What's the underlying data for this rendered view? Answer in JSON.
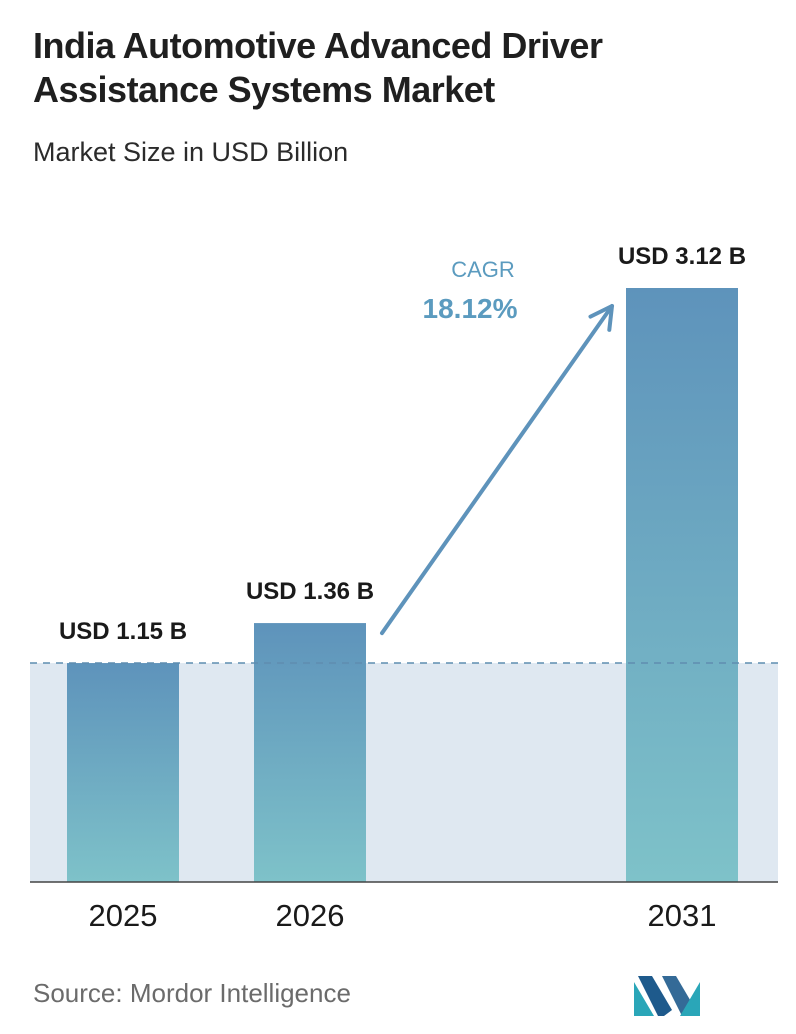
{
  "header": {
    "title": "India Automotive Advanced Driver Assistance Systems Market",
    "subtitle": "Market Size in USD Billion"
  },
  "footer": {
    "source": "Source:  Mordor Intelligence",
    "logo_icon": "mordor-intelligence-logo"
  },
  "colors": {
    "bar_top": "#5e93bb",
    "bar_bottom": "#7ec2c9",
    "band": "#dfe8f1",
    "dashed_line": "#5f8db0",
    "arrow": "#5e93bb",
    "cagr_text": "#5b9bbf"
  },
  "chart_data": {
    "type": "bar",
    "categories": [
      "2025",
      "2026",
      "2031"
    ],
    "values": [
      1.15,
      1.36,
      3.12
    ],
    "value_labels": [
      "USD 1.15 B",
      "USD 1.36 B",
      "USD 3.12 B"
    ],
    "ylim": [
      0,
      3.12
    ],
    "xlabel": "",
    "ylabel": "",
    "grid": false,
    "reference_line": {
      "value": 1.15,
      "style": "dashed"
    },
    "annotation": {
      "label": "CAGR",
      "value": "18.12%"
    }
  }
}
